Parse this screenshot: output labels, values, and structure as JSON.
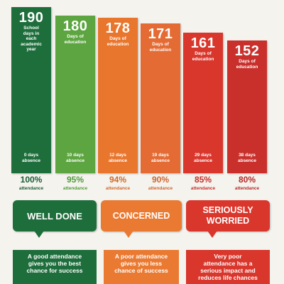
{
  "chart_data": {
    "type": "bar",
    "categories": [
      "100%",
      "95%",
      "94%",
      "90%",
      "85%",
      "80%"
    ],
    "values": [
      190,
      180,
      178,
      171,
      161,
      152
    ],
    "descriptions": [
      "School\ndays in\neach\nacademic\nyear",
      "Days of\neducation",
      "Days of\neducation",
      "Days of\neducation",
      "Days of\neducation",
      "Days of\neducation"
    ],
    "absences": [
      "0 days\nabsence",
      "10 days\nabsence",
      "12 days\nabsence",
      "19 days\nabsence",
      "29 days\nabsence",
      "38 days\nabsence"
    ],
    "attendance_label": "attendance",
    "colors": [
      "#1e6e3c",
      "#5ca540",
      "#e9762d",
      "#e46b33",
      "#d9362c",
      "#c9302c"
    ],
    "text_colors": [
      "#1a5c34",
      "#4f9a3a",
      "#d0692a",
      "#d0632d",
      "#c62f27",
      "#b52a26"
    ],
    "ylim": [
      0,
      190
    ]
  },
  "bubbles": [
    {
      "text": "WELL DONE",
      "color": "#1e6e3c"
    },
    {
      "text": "CONCERNED",
      "color": "#ea7a32"
    },
    {
      "text": "SERIOUSLY\nWORRIED",
      "color": "#d9362c"
    }
  ],
  "messages": [
    {
      "text": "A good attendance\ngives you the best\nchance for success",
      "color": "#1e6e3c"
    },
    {
      "text": "A poor attendance\ngives you less\nchance of success",
      "color": "#ea7a32"
    },
    {
      "text": "Very poor\nattendance has a\nserious impact and\nreduces life chances",
      "color": "#d9362c"
    }
  ]
}
